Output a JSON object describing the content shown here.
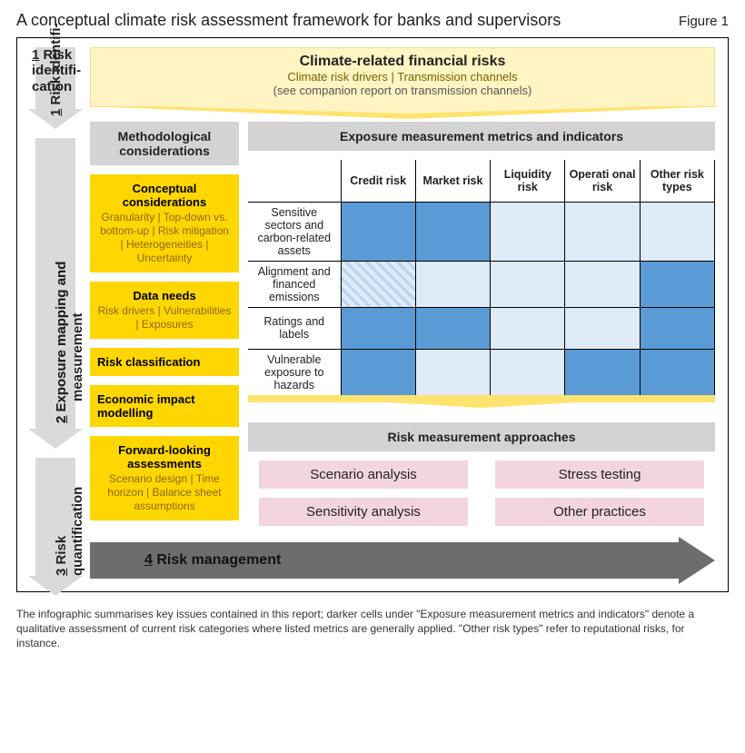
{
  "title": "A conceptional climate risk assessment framework for banks and supervisors",
  "title_fix": "A conceptual climate risk assessment framework for banks and supervisors",
  "figure_label": "Figure 1",
  "colors": {
    "banner_bg": "#fff4c2",
    "banner_arrow": "#ffe36e",
    "yellow_box": "#ffd600",
    "grey_head": "#d3d3d3",
    "matrix_dark": "#5b9bd5",
    "matrix_light": "#deebf7",
    "approach_bg": "#f3d6dd",
    "big_arrow": "#6d6d6d",
    "rail": "#d9d9d9"
  },
  "stages": {
    "s1": "1 Risk identifi­cation",
    "s2": "2 Exposure mapping and measurement",
    "s3": "3 Risk quantification",
    "s4": "4 Risk management"
  },
  "banner": {
    "line1": "Climate-related financial risks",
    "line2": "Climate risk drivers | Transmission channels",
    "line3": "(see companion report on transmission channels)"
  },
  "col_heads": {
    "left": "Methodological considerations",
    "right": "Exposure measurement metrics and indicators"
  },
  "left_boxes": {
    "conceptual": {
      "hd": "Conceptual considerations",
      "sub": "Granularity | Top-down vs. bottom-up | Risk mitigation | Heterogeneities | Uncertainty"
    },
    "data": {
      "hd": "Data needs",
      "sub": "Risk drivers | Vulnerabilities | Exposures"
    },
    "riskclass": {
      "hd": "Risk classification",
      "sub": ""
    },
    "econ": {
      "hd": "Economic impact modelling",
      "sub": ""
    },
    "fwd": {
      "hd": "Forward-looking assessments",
      "sub": "Scenario design | Time horizon | Balance sheet assumptions"
    }
  },
  "matrix": {
    "columns": [
      "Credit risk",
      "Market risk",
      "Liquidity risk",
      "Operati onal risk",
      "Other risk types"
    ],
    "rows": [
      {
        "label": "Sensitive sectors and carbon-related assets",
        "cells": [
          "dark",
          "dark",
          "light",
          "light",
          "light"
        ]
      },
      {
        "label": "Alignment and financed emissions",
        "cells": [
          "hatch",
          "light",
          "light",
          "light",
          "dark"
        ]
      },
      {
        "label": "Ratings and labels",
        "cells": [
          "dark",
          "dark",
          "light",
          "light",
          "dark"
        ]
      },
      {
        "label": "Vulnerable exposure to hazards",
        "cells": [
          "dark",
          "light",
          "light",
          "dark",
          "dark"
        ]
      }
    ]
  },
  "approaches_head": "Risk measurement approaches",
  "approaches": [
    "Scenario analysis",
    "Stress testing",
    "Sensitivity analysis",
    "Other practices"
  ],
  "caption": "The infographic summarises key issues contained in this report; darker cells under \"Exposure measurement metrics and indicators\" denote a qualitative assessment of current risk categories where listed metrics are generally applied. \"Other risk types\" refer to reputational risks, for instance."
}
